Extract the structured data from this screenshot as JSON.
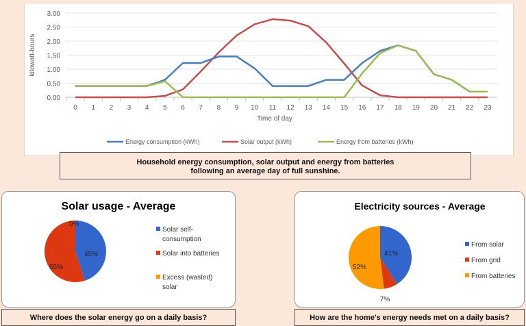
{
  "colors": {
    "background": "#fce8da",
    "blue": "#4a7ebb",
    "red": "#c0504d",
    "green": "#9bbb59",
    "pie_blue": "#3366cc",
    "pie_red": "#dc3912",
    "pie_orange": "#ff9900"
  },
  "chart_data": [
    {
      "type": "line",
      "xlabel": "Time of day",
      "ylabel": "kilowatt-hours",
      "ylim": [
        0,
        3
      ],
      "yticks": [
        "0.00",
        "0.50",
        "1.00",
        "1.50",
        "2.00",
        "2.50",
        "3.00"
      ],
      "x": [
        0,
        1,
        2,
        3,
        4,
        5,
        6,
        7,
        8,
        9,
        10,
        11,
        12,
        13,
        14,
        15,
        16,
        17,
        18,
        19,
        20,
        21,
        22,
        23
      ],
      "grid": true,
      "legend": "bottom",
      "series": [
        {
          "name": "Energy consumption (kWh)",
          "color": "#4a7ebb",
          "values": [
            0.4,
            0.4,
            0.4,
            0.4,
            0.4,
            0.62,
            1.22,
            1.22,
            1.45,
            1.45,
            1.03,
            0.4,
            0.4,
            0.4,
            0.62,
            0.62,
            1.22,
            1.65,
            1.85,
            1.65,
            0.82,
            0.62,
            0.2,
            0.2
          ]
        },
        {
          "name": "Solar output (kWh)",
          "color": "#c0504d",
          "values": [
            0,
            0,
            0,
            0,
            0,
            0.05,
            0.28,
            0.92,
            1.6,
            2.2,
            2.6,
            2.78,
            2.73,
            2.53,
            1.95,
            1.2,
            0.42,
            0.07,
            0,
            0,
            0,
            0,
            0,
            0
          ]
        },
        {
          "name": "Energy from batteries (kWh)",
          "color": "#9bbb59",
          "values": [
            0.4,
            0.4,
            0.4,
            0.4,
            0.4,
            0.57,
            0,
            0,
            0,
            0,
            0,
            0,
            0,
            0,
            0,
            0,
            0.85,
            1.57,
            1.85,
            1.65,
            0.82,
            0.62,
            0.2,
            0.2
          ]
        }
      ],
      "caption_line1": "Household energy consumption, solar output and energy from batteries",
      "caption_line2": "following an average day of full sunshine."
    },
    {
      "type": "pie",
      "title": "Solar usage - Average",
      "legend": "right",
      "slices": [
        {
          "label": "Solar self-consumption",
          "legend_line1": "Solar self-",
          "legend_line2": "consumption",
          "value": 45,
          "data_label": "45%",
          "color": "#3366cc"
        },
        {
          "label": "Solar into batteries",
          "legend_line1": "Solar into batteries",
          "legend_line2": "",
          "value": 55,
          "data_label": "55%",
          "color": "#dc3912"
        },
        {
          "label": "Excess (wasted) solar",
          "legend_line1": "Excess (wasted)",
          "legend_line2": "solar",
          "value": 0,
          "data_label": "0%",
          "color": "#ff9900"
        }
      ],
      "caption": "Where does the solar energy go on a daily basis?"
    },
    {
      "type": "pie",
      "title": "Electricity sources - Average",
      "legend": "right",
      "slices": [
        {
          "label": "From solar",
          "legend_line1": "From solar",
          "legend_line2": "",
          "value": 41,
          "data_label": "41%",
          "color": "#3366cc"
        },
        {
          "label": "From grid",
          "legend_line1": "From grid",
          "legend_line2": "",
          "value": 7,
          "data_label": "7%",
          "color": "#dc3912"
        },
        {
          "label": "From batteries",
          "legend_line1": "From batteries",
          "legend_line2": "",
          "value": 52,
          "data_label": "52%",
          "color": "#ff9900"
        }
      ],
      "caption": "How are the home's energy needs met on a daily basis?"
    }
  ]
}
